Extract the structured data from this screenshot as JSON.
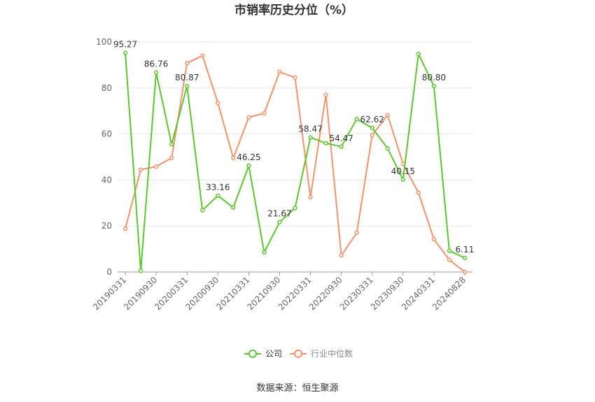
{
  "chart_data": {
    "type": "line",
    "title": "市销率历史分位（%）",
    "ylim": [
      0,
      100
    ],
    "yticks": [
      0,
      20,
      40,
      60,
      80,
      100
    ],
    "grid": true,
    "legend_position": "bottom-center",
    "x": [
      "20190331",
      "20190630",
      "20190930",
      "20191231",
      "20200331",
      "20200630",
      "20200930",
      "20201231",
      "20210331",
      "20210630",
      "20210930",
      "20211231",
      "20220331",
      "20220630",
      "20220930",
      "20221231",
      "20230331",
      "20230630",
      "20230930",
      "20231231",
      "20240331",
      "20240630",
      "20240828"
    ],
    "x_tick_labels": [
      "20190331",
      "20190930",
      "20200331",
      "20200930",
      "20210331",
      "20210930",
      "20220331",
      "20220930",
      "20230331",
      "20230930",
      "20240331",
      "20240828"
    ],
    "series": [
      {
        "name": "公司",
        "color": "#5cc72f",
        "values": [
          95.27,
          0.5,
          86.76,
          55.5,
          80.87,
          26.8,
          33.16,
          28.0,
          46.25,
          8.5,
          21.67,
          27.8,
          58.47,
          56.0,
          54.47,
          66.5,
          62.62,
          53.7,
          40.15,
          94.8,
          80.8,
          9.2,
          6.11
        ],
        "labels": {
          "0": "95.27",
          "2": "86.76",
          "4": "80.87",
          "6": "33.16",
          "8": "46.25",
          "10": "21.67",
          "12": "58.47",
          "14": "54.47",
          "16": "62.62",
          "18": "40.15",
          "20": "80.80",
          "22": "6.11"
        }
      },
      {
        "name": "行业中位数",
        "color": "#f4926a",
        "values": [
          18.8,
          44.5,
          45.8,
          49.5,
          90.8,
          94.0,
          73.5,
          49.5,
          67.2,
          69.0,
          87.0,
          84.5,
          32.5,
          77.0,
          7.2,
          17.0,
          59.5,
          68.2,
          47.0,
          34.5,
          14.2,
          5.3,
          0.0
        ]
      }
    ]
  },
  "source_text": "数据来源：恒生聚源"
}
